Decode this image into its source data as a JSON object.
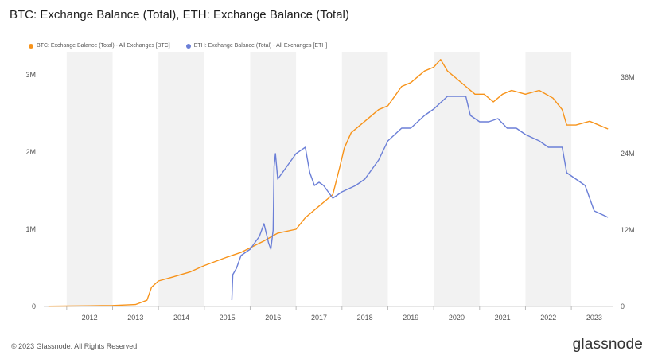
{
  "header": {
    "title": "BTC: Exchange Balance (Total), ETH: Exchange Balance (Total)"
  },
  "footer": {
    "copyright": "© 2023 Glassnode. All Rights Reserved.",
    "brand": "glassnode"
  },
  "colors": {
    "btc": "#f7931a",
    "eth": "#6b7fd7",
    "band": "#f2f2f2",
    "grid": "#e9e9e9"
  },
  "chart_data": {
    "type": "line",
    "title": "BTC: Exchange Balance (Total), ETH: Exchange Balance (Total)",
    "x_ticks": [
      "2012",
      "2013",
      "2014",
      "2015",
      "2016",
      "2017",
      "2018",
      "2019",
      "2020",
      "2021",
      "2022",
      "2023"
    ],
    "x_range": [
      2011.5,
      2023.9
    ],
    "y_left": {
      "ticks": [
        "0",
        "1M",
        "2M",
        "3M"
      ],
      "range": [
        0,
        3300000
      ]
    },
    "y_right": {
      "ticks": [
        "0",
        "12M",
        "24M",
        "36M"
      ],
      "range": [
        0,
        40000000
      ]
    },
    "grid": false,
    "legend_position": "top-left",
    "series": [
      {
        "name": "BTC: Exchange Balance (Total) - All Exchanges [BTC]",
        "axis": "left",
        "x": [
          2011.6,
          2012.0,
          2012.5,
          2013.0,
          2013.5,
          2013.75,
          2013.85,
          2014.0,
          2014.3,
          2014.7,
          2015.0,
          2015.5,
          2015.8,
          2016.0,
          2016.3,
          2016.6,
          2017.0,
          2017.2,
          2017.4,
          2017.6,
          2017.8,
          2017.95,
          2018.05,
          2018.2,
          2018.5,
          2018.8,
          2019.0,
          2019.3,
          2019.5,
          2019.8,
          2020.0,
          2020.15,
          2020.3,
          2020.5,
          2020.7,
          2020.9,
          2021.1,
          2021.3,
          2021.5,
          2021.7,
          2022.0,
          2022.3,
          2022.6,
          2022.8,
          2022.9,
          2023.1,
          2023.4,
          2023.8
        ],
        "y": [
          3000,
          5000,
          8000,
          12000,
          25000,
          80000,
          250000,
          330000,
          380000,
          450000,
          530000,
          640000,
          700000,
          760000,
          850000,
          950000,
          1000000,
          1150000,
          1250000,
          1350000,
          1450000,
          1800000,
          2050000,
          2250000,
          2400000,
          2550000,
          2600000,
          2850000,
          2900000,
          3050000,
          3100000,
          3200000,
          3050000,
          2950000,
          2850000,
          2750000,
          2750000,
          2650000,
          2750000,
          2800000,
          2750000,
          2800000,
          2700000,
          2550000,
          2350000,
          2350000,
          2400000,
          2300000
        ]
      },
      {
        "name": "ETH: Exchange Balance (Total) - All Exchanges [ETH]",
        "axis": "right",
        "x": [
          2015.6,
          2015.62,
          2015.7,
          2015.8,
          2016.0,
          2016.1,
          2016.2,
          2016.3,
          2016.4,
          2016.45,
          2016.5,
          2016.52,
          2016.55,
          2016.6,
          2016.8,
          2017.0,
          2017.2,
          2017.3,
          2017.4,
          2017.5,
          2017.6,
          2017.8,
          2018.0,
          2018.3,
          2018.5,
          2018.8,
          2019.0,
          2019.3,
          2019.5,
          2019.8,
          2020.0,
          2020.3,
          2020.5,
          2020.7,
          2020.8,
          2021.0,
          2021.2,
          2021.4,
          2021.6,
          2021.8,
          2022.0,
          2022.3,
          2022.5,
          2022.7,
          2022.8,
          2022.9,
          2023.1,
          2023.3,
          2023.5,
          2023.8
        ],
        "y": [
          1000000,
          5000000,
          6000000,
          8000000,
          9000000,
          10000000,
          11000000,
          13000000,
          10000000,
          9000000,
          12000000,
          22000000,
          24000000,
          20000000,
          22000000,
          24000000,
          25000000,
          21000000,
          19000000,
          19500000,
          19000000,
          17000000,
          18000000,
          19000000,
          20000000,
          23000000,
          26000000,
          28000000,
          28000000,
          30000000,
          31000000,
          33000000,
          33000000,
          33000000,
          30000000,
          29000000,
          29000000,
          29500000,
          28000000,
          28000000,
          27000000,
          26000000,
          25000000,
          25000000,
          25000000,
          21000000,
          20000000,
          19000000,
          15000000,
          14000000
        ]
      }
    ]
  }
}
